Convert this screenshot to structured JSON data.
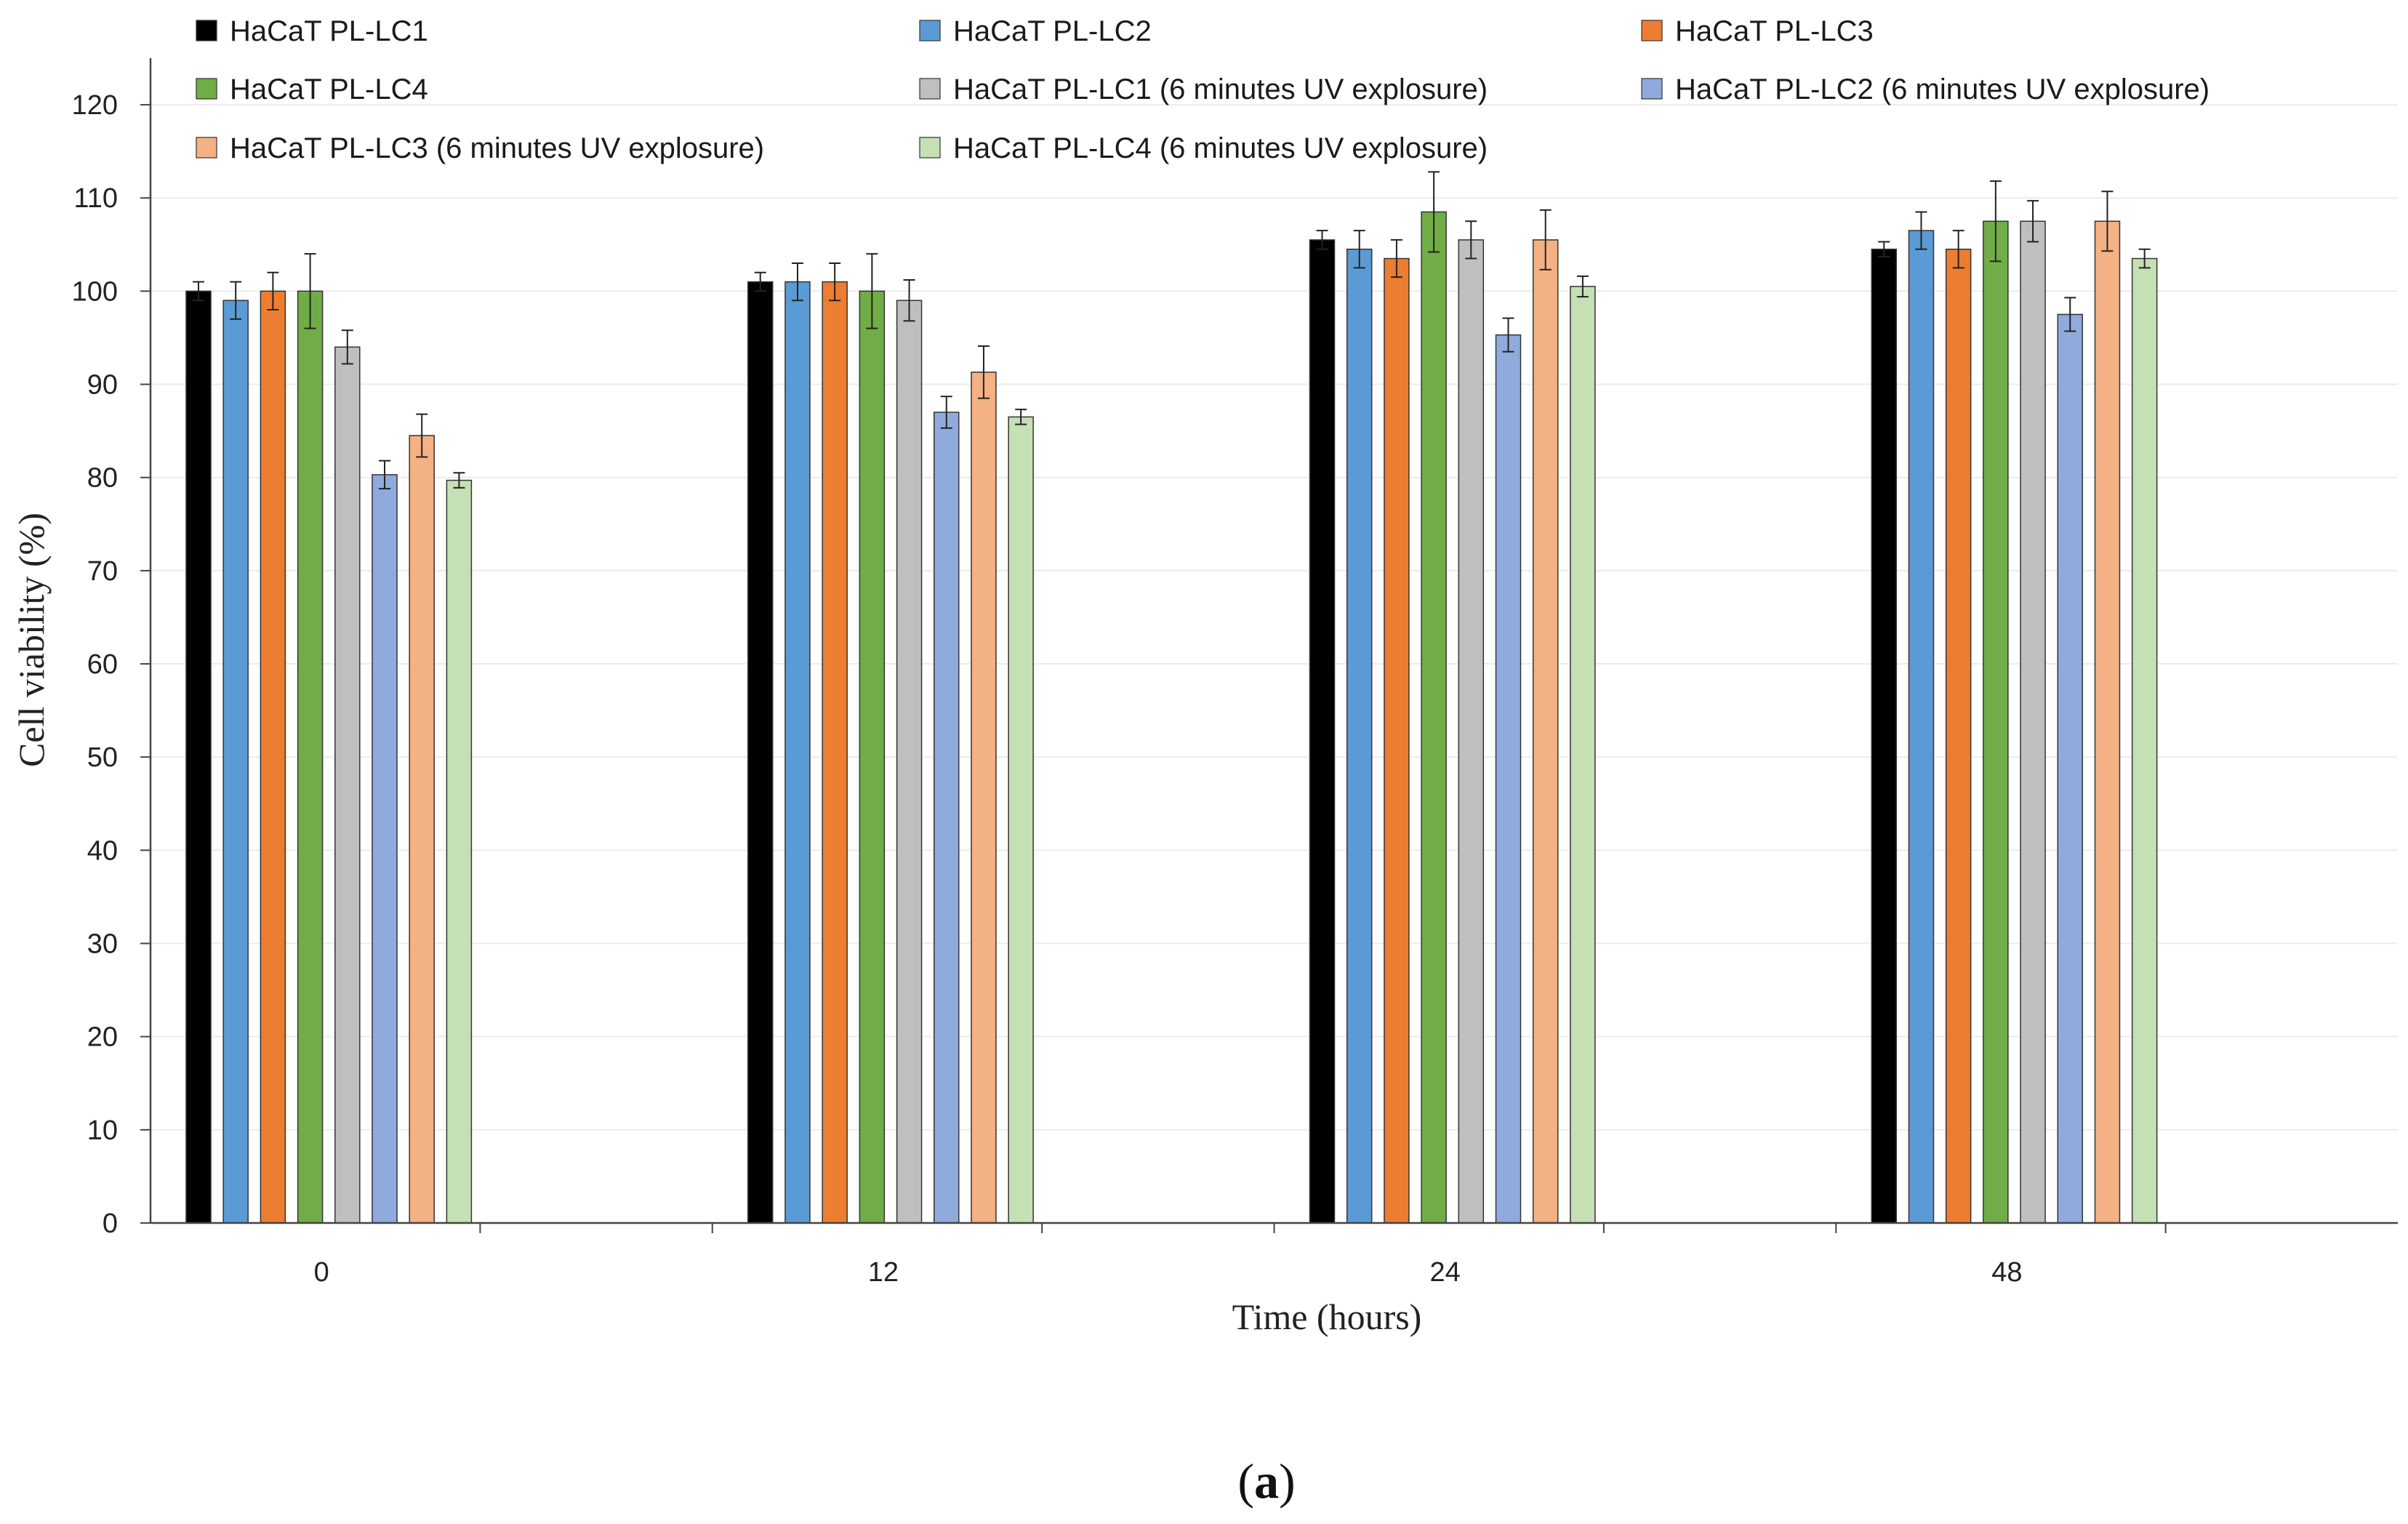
{
  "chart_data": {
    "type": "bar",
    "title": "",
    "xlabel": "Time (hours)",
    "ylabel": "Cell viability (%)",
    "ylim": [
      0,
      125
    ],
    "yticks": [
      0,
      10,
      20,
      30,
      40,
      50,
      60,
      70,
      80,
      90,
      100,
      110,
      120
    ],
    "grid": true,
    "legend_position": "top",
    "categories": [
      "0",
      "12",
      "24",
      "48"
    ],
    "series": [
      {
        "name": "HaCaT PL-LC1",
        "color": "#000000",
        "values": [
          100,
          101,
          105.5,
          104.5
        ],
        "errors": [
          1,
          1,
          1,
          0.8
        ]
      },
      {
        "name": "HaCaT PL-LC2",
        "color": "#5b9bd5",
        "values": [
          99,
          101,
          104.5,
          106.5
        ],
        "errors": [
          2,
          2,
          2,
          2
        ]
      },
      {
        "name": "HaCaT PL-LC3",
        "color": "#ed7d31",
        "values": [
          100,
          101,
          103.5,
          104.5
        ],
        "errors": [
          2,
          2,
          2,
          2
        ]
      },
      {
        "name": "HaCaT PL-LC4",
        "color": "#70ad47",
        "values": [
          100,
          100,
          108.5,
          107.5
        ],
        "errors": [
          4,
          4,
          4.3,
          4.3
        ]
      },
      {
        "name": "HaCaT PL-LC1 (6 minutes UV explosure)",
        "color": "#bfbfbf",
        "values": [
          94,
          99,
          105.5,
          107.5
        ],
        "errors": [
          1.8,
          2.2,
          2,
          2.2
        ]
      },
      {
        "name": "HaCaT PL-LC2 (6 minutes UV explosure)",
        "color": "#8faadc",
        "values": [
          80.3,
          87,
          95.3,
          97.5
        ],
        "errors": [
          1.5,
          1.7,
          1.8,
          1.8
        ]
      },
      {
        "name": "HaCaT PL-LC3 (6 minutes UV explosure)",
        "color": "#f4b183",
        "values": [
          84.5,
          91.3,
          105.5,
          107.5
        ],
        "errors": [
          2.3,
          2.8,
          3.2,
          3.2
        ]
      },
      {
        "name": "HaCaT PL-LC4 (6 minutes UV explosure)",
        "color": "#c5e0b4",
        "values": [
          79.7,
          86.5,
          100.5,
          103.5
        ],
        "errors": [
          0.8,
          0.8,
          1.1,
          1
        ]
      }
    ]
  },
  "caption": {
    "open": "(",
    "letter": "a",
    "close": ")"
  }
}
